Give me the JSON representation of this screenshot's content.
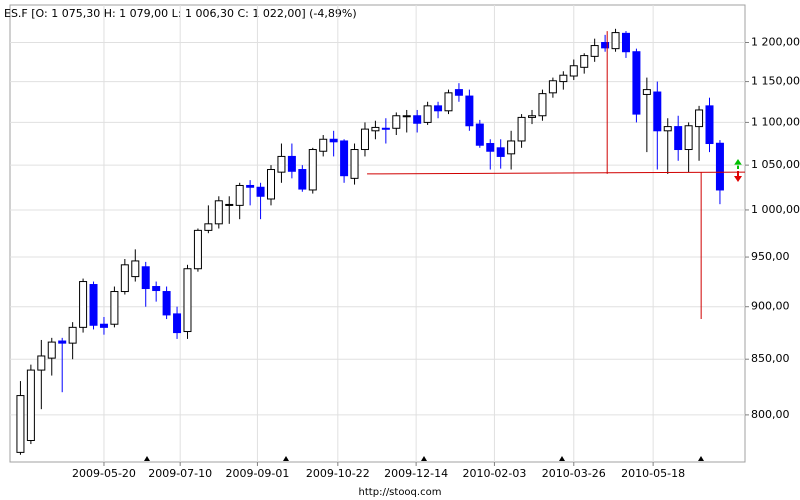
{
  "chart_data": {
    "type": "candlestick",
    "title": "ES.F [O: 1 075,30  H: 1 079,00  L: 1 006,30  C: 1 022,00] (-4,89%)",
    "source": "http://stooq.com",
    "log_scale": true,
    "grid": true,
    "up_color": "#ffffff",
    "down_color": "#0000ff",
    "line_color": "#d00000",
    "open": [
      768,
      778,
      840,
      851,
      867,
      865,
      880,
      922,
      883,
      883,
      915,
      930,
      940,
      920,
      915,
      893,
      876,
      938,
      978,
      985,
      1005,
      1005,
      1027,
      1025,
      1012,
      1042,
      1060,
      1045,
      1022,
      1066,
      1080,
      1078,
      1035,
      1068,
      1090,
      1093,
      1093,
      1107,
      1108,
      1100,
      1120,
      1114,
      1140,
      1132,
      1098,
      1075,
      1070,
      1063,
      1078,
      1106,
      1108,
      1136,
      1150,
      1157,
      1168,
      1182,
      1200,
      1192,
      1212,
      1188,
      1134,
      1137,
      1090,
      1095,
      1068,
      1095,
      1120,
      1075.3
    ],
    "high": [
      830,
      845,
      868,
      870,
      870,
      885,
      928,
      925,
      890,
      920,
      948,
      958,
      945,
      925,
      920,
      900,
      942,
      980,
      1005,
      1015,
      1015,
      1030,
      1033,
      1030,
      1050,
      1075,
      1075,
      1050,
      1070,
      1085,
      1090,
      1080,
      1075,
      1100,
      1102,
      1105,
      1112,
      1115,
      1115,
      1125,
      1125,
      1140,
      1148,
      1140,
      1103,
      1080,
      1080,
      1090,
      1110,
      1115,
      1140,
      1155,
      1163,
      1178,
      1186,
      1205,
      1210,
      1218,
      1215,
      1192,
      1155,
      1150,
      1105,
      1108,
      1100,
      1120,
      1130,
      1079
    ],
    "low": [
      766,
      775,
      805,
      835,
      820,
      850,
      875,
      878,
      873,
      880,
      912,
      925,
      900,
      905,
      888,
      869,
      869,
      935,
      975,
      980,
      985,
      990,
      1005,
      990,
      1005,
      1030,
      1035,
      1020,
      1018,
      1060,
      1060,
      1030,
      1028,
      1060,
      1080,
      1075,
      1085,
      1088,
      1088,
      1097,
      1105,
      1110,
      1125,
      1090,
      1070,
      1045,
      1046,
      1045,
      1070,
      1098,
      1102,
      1130,
      1140,
      1152,
      1160,
      1175,
      1188,
      1188,
      1180,
      1100,
      1065,
      1045,
      1040,
      1055,
      1042,
      1055,
      1065,
      1006.3
    ],
    "close": [
      817,
      840,
      853,
      866,
      865,
      880,
      925,
      882,
      880,
      915,
      942,
      946,
      918,
      916,
      892,
      875,
      938,
      978,
      985,
      1010,
      1006,
      1027,
      1025,
      1015,
      1045,
      1060,
      1043,
      1023,
      1068,
      1080,
      1077,
      1038,
      1068,
      1092,
      1094,
      1092,
      1108,
      1108,
      1099,
      1120,
      1114,
      1136,
      1133,
      1096,
      1073,
      1066,
      1060,
      1078,
      1106,
      1108,
      1135,
      1151,
      1158,
      1170,
      1183,
      1196,
      1193,
      1213,
      1188,
      1110,
      1140,
      1090,
      1095,
      1068,
      1096,
      1115,
      1075,
      1022
    ],
    "xlim": [
      -1,
      69.4
    ],
    "xticks": [
      {
        "value": 8.0,
        "label": "2009-05-20"
      },
      {
        "value": 15.3,
        "label": "2009-07-10"
      },
      {
        "value": 22.7,
        "label": "2009-09-01"
      },
      {
        "value": 30.4,
        "label": "2009-10-22"
      },
      {
        "value": 37.9,
        "label": "2009-12-14"
      },
      {
        "value": 45.4,
        "label": "2010-02-03"
      },
      {
        "value": 53.0,
        "label": "2010-03-26"
      },
      {
        "value": 60.6,
        "label": "2010-05-18"
      }
    ],
    "ylim": [
      760,
      1250
    ],
    "yticks": [
      {
        "value": 800,
        "label": "800,00"
      },
      {
        "value": 850,
        "label": "850,00"
      },
      {
        "value": 900,
        "label": "900,00"
      },
      {
        "value": 950,
        "label": "950,00"
      },
      {
        "value": 1000,
        "label": "1 000,00"
      },
      {
        "value": 1050,
        "label": "1 050,00"
      },
      {
        "value": 1100,
        "label": "1 100,00"
      },
      {
        "value": 1150,
        "label": "1 150,00"
      },
      {
        "value": 1200,
        "label": "1 200,00"
      }
    ],
    "drawn_lines": [
      {
        "x": [
          33.2,
          69.4
        ],
        "y": [
          1040,
          1042
        ]
      },
      {
        "x": [
          56.2,
          56.2
        ],
        "y": [
          1215,
          1040
        ]
      },
      {
        "x": [
          65.2,
          65.2
        ],
        "y": [
          1042,
          888
        ]
      }
    ]
  }
}
